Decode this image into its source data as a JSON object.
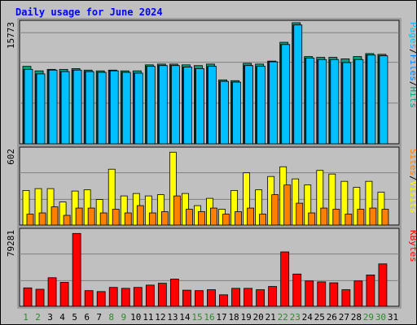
{
  "chart_data": {
    "type": "bar",
    "title": "Daily usage for June 2024",
    "categories": [
      "1",
      "2",
      "3",
      "4",
      "5",
      "6",
      "7",
      "8",
      "9",
      "10",
      "11",
      "12",
      "13",
      "14",
      "15",
      "16",
      "17",
      "18",
      "19",
      "20",
      "21",
      "22",
      "23",
      "24",
      "25",
      "26",
      "27",
      "28",
      "29",
      "30",
      "31"
    ],
    "weekend_days": [
      "1",
      "8",
      "15",
      "22",
      "29",
      "2",
      "9",
      "16",
      "23",
      "30"
    ],
    "weekend_color": "#2c8a2c",
    "weekday_color": "#000000",
    "panels": [
      {
        "name": "hits-files-pages",
        "ymax_label": "15773",
        "ymax": 15773,
        "legend": [
          "Pages",
          "/",
          "Files",
          "/",
          "Hits"
        ],
        "legend_colors": [
          "#00c0ff",
          "#000000",
          "#0080ff",
          "#000000",
          "#00a080"
        ],
        "series": [
          {
            "name": "Hits",
            "color": "#00a080",
            "values": [
              10300,
              9700,
              9900,
              9900,
              10000,
              9800,
              9700,
              9800,
              9700,
              9700,
              10500,
              10600,
              10600,
              10500,
              10400,
              10600,
              8500,
              8400,
              10700,
              10600,
              11000,
              13500,
              16100,
              11600,
              11500,
              11500,
              11300,
              11600,
              12000,
              11900,
              null
            ]
          },
          {
            "name": "Files",
            "color": "#0080ff",
            "values": [
              9900,
              9300,
              9800,
              9600,
              9800,
              9600,
              9500,
              9700,
              9500,
              9400,
              10300,
              10400,
              10400,
              10200,
              10000,
              10300,
              8300,
              8200,
              10400,
              10300,
              10900,
              13200,
              15800,
              11400,
              11200,
              11200,
              10800,
              11200,
              11800,
              11700,
              null
            ]
          },
          {
            "name": "Pages",
            "color": "#00c0ff",
            "values": [
              9900,
              9300,
              9800,
              9600,
              9800,
              9600,
              9500,
              9700,
              9500,
              9400,
              10300,
              10400,
              10400,
              10200,
              10000,
              10300,
              8300,
              8200,
              10400,
              10300,
              10900,
              13200,
              15800,
              11400,
              11200,
              11200,
              10800,
              11200,
              11800,
              11700,
              null
            ]
          }
        ]
      },
      {
        "name": "visits-sites",
        "ymax_label": "602",
        "ymax": 602,
        "legend": [
          "Sites",
          "/",
          "Visits"
        ],
        "legend_colors": [
          "#ff8000",
          "#000000",
          "#ffff00"
        ],
        "series": [
          {
            "name": "Visits",
            "color": "#ffff00",
            "values": [
              285,
              300,
              300,
              190,
              280,
              290,
              210,
              460,
              240,
              260,
              240,
              250,
              600,
              260,
              160,
              220,
              130,
              285,
              430,
              290,
              400,
              480,
              380,
              330,
              450,
              420,
              360,
              310,
              360,
              270,
              null
            ]
          },
          {
            "name": "Sites",
            "color": "#ff8000",
            "values": [
              90,
              100,
              150,
              80,
              140,
              140,
              100,
              130,
              100,
              160,
              100,
              110,
              240,
              130,
              110,
              140,
              90,
              110,
              140,
              90,
              250,
              330,
              180,
              100,
              140,
              130,
              90,
              130,
              140,
              130,
              null
            ]
          }
        ]
      },
      {
        "name": "kbytes",
        "ymax_label": "79281",
        "ymax": 79281,
        "legend": [
          "KBytes"
        ],
        "legend_colors": [
          "#ff0000"
        ],
        "series": [
          {
            "name": "KBytes",
            "color": "#ff0000",
            "values": [
              20000,
              18500,
              31000,
              26000,
              79000,
              17000,
              16000,
              20500,
              19500,
              20500,
              23000,
              25000,
              29500,
              17500,
              17000,
              18000,
              12500,
              19500,
              19500,
              18000,
              21500,
              59000,
              35000,
              27500,
              26500,
              25500,
              18000,
              27500,
              34000,
              46000,
              null
            ]
          }
        ]
      }
    ]
  }
}
